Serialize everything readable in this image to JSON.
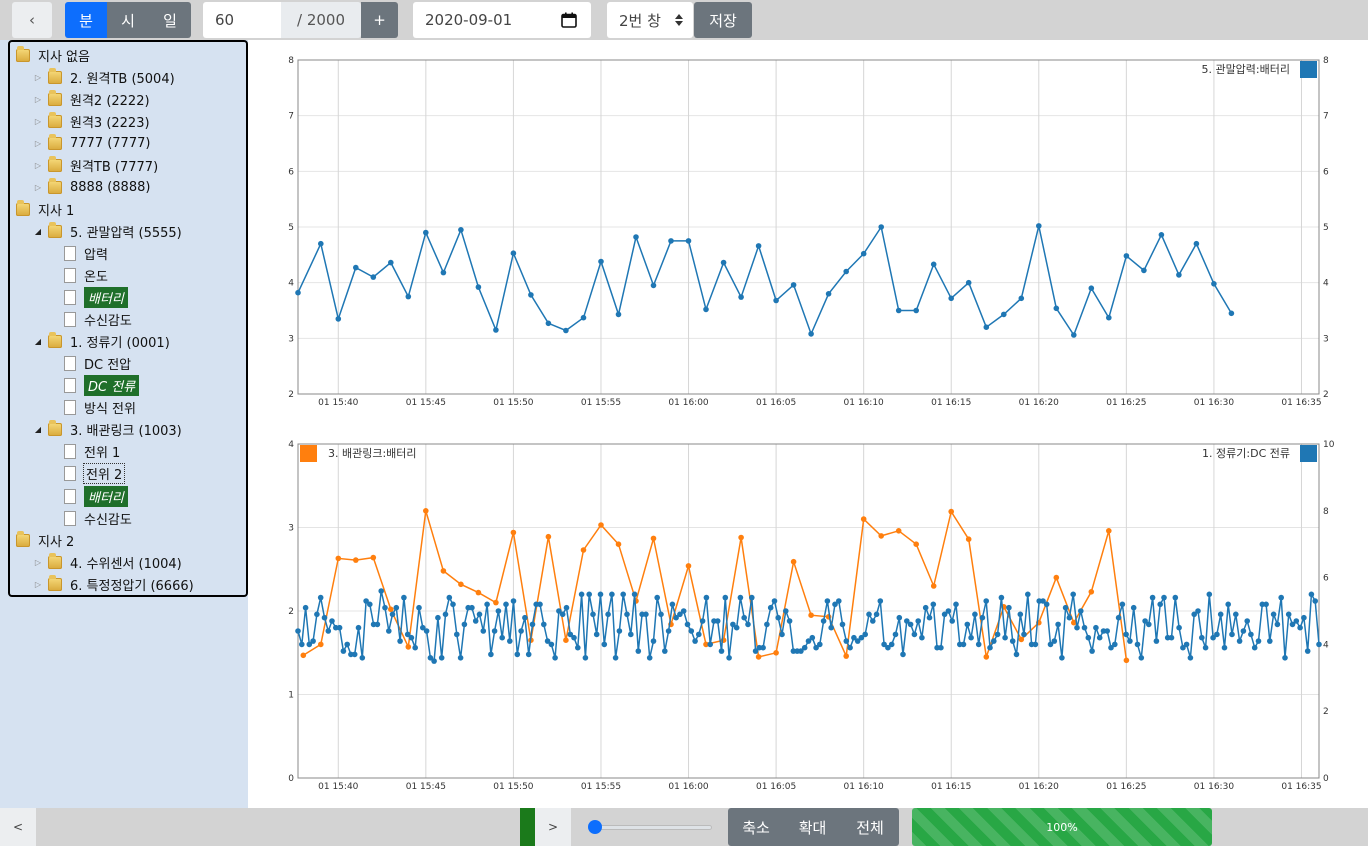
{
  "toolbar": {
    "back": "‹",
    "units": [
      "분",
      "시",
      "일"
    ],
    "count": "60",
    "total": "/ 2000",
    "plus": "+",
    "date": "2020-09-01",
    "window": "2번 창",
    "save": "저장"
  },
  "tree": [
    {
      "label": "지사 없음",
      "type": "folder",
      "level": 0,
      "expand": ""
    },
    {
      "label": "2. 원격TB (5004)",
      "type": "folder",
      "level": 1,
      "expand": "closed"
    },
    {
      "label": "원격2 (2222)",
      "type": "folder",
      "level": 1,
      "expand": "closed"
    },
    {
      "label": "원격3 (2223)",
      "type": "folder",
      "level": 1,
      "expand": "closed"
    },
    {
      "label": "7777 (7777)",
      "type": "folder",
      "level": 1,
      "expand": "closed"
    },
    {
      "label": "원격TB (7777)",
      "type": "folder",
      "level": 1,
      "expand": "closed"
    },
    {
      "label": "8888 (8888)",
      "type": "folder",
      "level": 1,
      "expand": "closed"
    },
    {
      "label": "지사 1",
      "type": "folder",
      "level": 0,
      "expand": ""
    },
    {
      "label": "5. 관말압력 (5555)",
      "type": "folder",
      "level": 1,
      "expand": "open"
    },
    {
      "label": "압력",
      "type": "doc",
      "level": 2,
      "state": ""
    },
    {
      "label": "온도",
      "type": "doc",
      "level": 2,
      "state": ""
    },
    {
      "label": "배터리",
      "type": "doc",
      "level": 2,
      "state": "selected"
    },
    {
      "label": "수신감도",
      "type": "doc",
      "level": 2,
      "state": ""
    },
    {
      "label": "1. 정류기 (0001)",
      "type": "folder",
      "level": 1,
      "expand": "open"
    },
    {
      "label": "DC 전압",
      "type": "doc",
      "level": 2,
      "state": ""
    },
    {
      "label": "DC 전류",
      "type": "doc",
      "level": 2,
      "state": "selected"
    },
    {
      "label": "방식 전위",
      "type": "doc",
      "level": 2,
      "state": ""
    },
    {
      "label": "3. 배관링크 (1003)",
      "type": "folder",
      "level": 1,
      "expand": "open"
    },
    {
      "label": "전위 1",
      "type": "doc",
      "level": 2,
      "state": ""
    },
    {
      "label": "전위 2",
      "type": "doc",
      "level": 2,
      "state": "focused"
    },
    {
      "label": "배터리",
      "type": "doc",
      "level": 2,
      "state": "selected"
    },
    {
      "label": "수신감도",
      "type": "doc",
      "level": 2,
      "state": ""
    },
    {
      "label": "지사 2",
      "type": "folder",
      "level": 0,
      "expand": ""
    },
    {
      "label": "4. 수위센서 (1004)",
      "type": "folder",
      "level": 1,
      "expand": "closed"
    },
    {
      "label": "6. 특정정압기 (6666)",
      "type": "folder",
      "level": 1,
      "expand": "closed"
    }
  ],
  "colors": {
    "blue": "#1f77b4",
    "orange": "#ff7f0e",
    "selected": "#1f6f2a",
    "primary": "#0d6efd",
    "secondary": "#6c757d",
    "progress": "#28a745"
  },
  "bottombar": {
    "prev": "<",
    "next": ">",
    "zoom_level": 0,
    "zoom_out": "축소",
    "zoom_in": "확대",
    "all": "전체",
    "progress_label": "100%",
    "progress_value": 100
  },
  "chart_data": [
    {
      "type": "line",
      "legend_right": "5. 관말압력:배터리",
      "x_ticks": [
        "01 15:40",
        "01 15:45",
        "01 15:50",
        "01 15:55",
        "01 16:00",
        "01 16:05",
        "01 16:10",
        "01 16:15",
        "01 16:20",
        "01 16:25",
        "01 16:30",
        "01 16:35"
      ],
      "y_ticks": [
        "2",
        "3",
        "4",
        "5",
        "6",
        "7",
        "8"
      ],
      "y_right_ticks": [
        "2",
        "3",
        "4",
        "5",
        "6",
        "7",
        "8"
      ],
      "ylim": [
        2,
        8
      ],
      "xlim": [
        0.7,
        59
      ],
      "series": [
        {
          "name": "5. 관말압력:배터리",
          "axis": "left",
          "color": "#1f77b4",
          "x": [
            0.7,
            2,
            3,
            4,
            5,
            6,
            7,
            8,
            9,
            10,
            11,
            12,
            13,
            14,
            15,
            16,
            17,
            18,
            19,
            20,
            21,
            22,
            23,
            24,
            25,
            26,
            27,
            28,
            29,
            30,
            31,
            32,
            33,
            34,
            35,
            36,
            37,
            38,
            39,
            40,
            41,
            42,
            43,
            44,
            45,
            46,
            47,
            48,
            49,
            50,
            51,
            52,
            53,
            54
          ],
          "values": [
            3.82,
            4.7,
            3.35,
            4.27,
            4.1,
            4.36,
            3.75,
            4.9,
            4.18,
            4.95,
            3.92,
            3.15,
            4.53,
            3.78,
            3.27,
            3.14,
            3.37,
            4.38,
            3.43,
            4.82,
            3.95,
            4.75,
            4.75,
            3.52,
            4.36,
            3.74,
            4.66,
            3.68,
            3.96,
            3.08,
            3.8,
            4.2,
            4.52,
            5.0,
            3.5,
            3.5,
            4.33,
            3.72,
            4.0,
            3.2,
            3.43,
            3.72,
            5.02,
            3.54,
            3.06,
            3.9,
            3.37,
            4.48,
            4.22,
            4.86,
            4.14,
            4.7,
            3.98,
            3.45
          ]
        }
      ]
    },
    {
      "type": "line",
      "legend_left": "3. 배관링크:배터리",
      "legend_right": "1. 정류기:DC 전류",
      "x_ticks": [
        "01 15:40",
        "01 15:45",
        "01 15:50",
        "01 15:55",
        "01 16:00",
        "01 16:05",
        "01 16:10",
        "01 16:15",
        "01 16:20",
        "01 16:25",
        "01 16:30",
        "01 16:35"
      ],
      "y_ticks": [
        "0",
        "1",
        "2",
        "3",
        "4"
      ],
      "y_right_ticks": [
        "0",
        "2",
        "4",
        "6",
        "8",
        "10"
      ],
      "ylim": [
        0,
        4
      ],
      "y_right_lim": [
        0,
        10
      ],
      "xlim": [
        0.7,
        59
      ],
      "series": [
        {
          "name": "3. 배관링크:배터리",
          "axis": "left",
          "color": "#ff7f0e",
          "x": [
            1,
            2,
            3,
            4,
            5,
            6,
            7,
            8,
            9,
            10,
            11,
            12,
            13,
            14,
            15,
            16,
            17,
            18,
            19,
            20,
            21,
            22,
            23,
            24,
            25,
            26,
            27,
            28,
            29,
            30,
            31,
            32,
            33,
            34,
            35,
            36,
            37,
            38,
            39,
            40,
            41,
            42,
            43,
            44,
            45,
            46,
            47,
            48
          ],
          "values": [
            1.47,
            1.6,
            2.63,
            2.61,
            2.64,
            2.02,
            1.57,
            3.2,
            2.48,
            2.32,
            2.22,
            2.1,
            2.94,
            1.65,
            2.89,
            1.65,
            2.73,
            3.03,
            2.8,
            2.12,
            2.87,
            1.84,
            2.54,
            1.6,
            1.65,
            2.88,
            1.45,
            1.5,
            2.59,
            1.95,
            1.93,
            1.46,
            3.1,
            2.9,
            2.96,
            2.8,
            2.3,
            3.19,
            2.86,
            1.45,
            2.05,
            1.66,
            1.86,
            2.4,
            1.86,
            2.23,
            2.96,
            1.41
          ]
        },
        {
          "name": "1. 정류기:DC 전류",
          "axis": "right",
          "color": "#1f77b4",
          "x_start": 0.7,
          "x_end": 59,
          "values": [
            4.4,
            4,
            5.1,
            4,
            4.1,
            4.9,
            5.4,
            4.8,
            4.4,
            4.7,
            4.5,
            4.5,
            3.8,
            4,
            3.7,
            3.7,
            4.5,
            3.6,
            5.3,
            5.2,
            4.6,
            4.6,
            5.6,
            5.1,
            4.4,
            4.9,
            5.1,
            4.1,
            5.4,
            4.3,
            4.2,
            3.9,
            5.1,
            4.5,
            4.4,
            3.6,
            3.5,
            4.8,
            3.6,
            4.9,
            5.4,
            5.2,
            4.3,
            3.6,
            4.6,
            5.1,
            5.1,
            4.7,
            4.9,
            4.4,
            5.2,
            3.7,
            4.4,
            5.0,
            4.2,
            5.2,
            4.1,
            5.3,
            3.7,
            4.4,
            4.8,
            3.7,
            4.6,
            5.2,
            5.2,
            4.6,
            4.1,
            4,
            3.6,
            5.0,
            4.9,
            5.1,
            4.3,
            4.2,
            3.9,
            5.5,
            3.6,
            5.5,
            4.9,
            4.3,
            5.5,
            4.0,
            4.9,
            5.5,
            3.6,
            4.4,
            5.5,
            4.9,
            4.3,
            5.5,
            3.8,
            4.9,
            4.9,
            3.6,
            4.1,
            5.4,
            4.9,
            3.8,
            4.4,
            5.2,
            4.8,
            4.9,
            5.0,
            4.6,
            4.4,
            4.1,
            4.3,
            4.7,
            5.4,
            4.0,
            4.7,
            4.7,
            3.8,
            5.4,
            3.6,
            4.6,
            4.5,
            5.4,
            4.8,
            4.6,
            5.4,
            3.8,
            3.9,
            3.9,
            4.6,
            5.1,
            5.3,
            4.8,
            4.3,
            5.0,
            4.7,
            3.8,
            3.8,
            3.8,
            3.9,
            4.1,
            4.2,
            3.9,
            4.0,
            4.7,
            5.3,
            4.5,
            5.2,
            5.3,
            4.6,
            4.1,
            3.9,
            4.2,
            4.1,
            4.2,
            4.3,
            4.9,
            4.7,
            4.9,
            5.3,
            4.0,
            3.9,
            4.0,
            4.3,
            4.8,
            3.7,
            4.7,
            4.6,
            4.3,
            4.7,
            4.2,
            5.1,
            4.8,
            5.2,
            3.9,
            3.9,
            4.9,
            5.0,
            4.7,
            5.2,
            4.0,
            4.0,
            4.6,
            4.2,
            4.9,
            4.0,
            4.8,
            5.3,
            3.9,
            4.1,
            4.3,
            5.4,
            4.2,
            5.1,
            4.1,
            3.7,
            4.9,
            4.3,
            5.5,
            4.0,
            4.0,
            5.3,
            5.3,
            5.2,
            4.0,
            4.1,
            4.6,
            3.6,
            5.1,
            4.8,
            5.5,
            4.5,
            5.0,
            4.5,
            4.2,
            3.8,
            4.5,
            4.2,
            4.4,
            4.4,
            3.9,
            4.0,
            4.8,
            5.2,
            4.3,
            4.1,
            5.1,
            4.0,
            3.6,
            4.7,
            4.6,
            5.4,
            4.1,
            5.2,
            5.4,
            4.2,
            4.2,
            5.4,
            4.5,
            3.9,
            4.0,
            3.6,
            4.9,
            5.0,
            4.2,
            3.9,
            5.5,
            4.2,
            4.3,
            4.9,
            3.9,
            5.2,
            4.3,
            4.9,
            4.1,
            4.4,
            4.7,
            4.3,
            3.9,
            4.1,
            5.2,
            5.2,
            4.1,
            4.9,
            4.6,
            5.4,
            3.6,
            4.9,
            4.6,
            4.7,
            4.5,
            4.8,
            3.8,
            5.5,
            5.3,
            4.0
          ]
        }
      ]
    }
  ]
}
